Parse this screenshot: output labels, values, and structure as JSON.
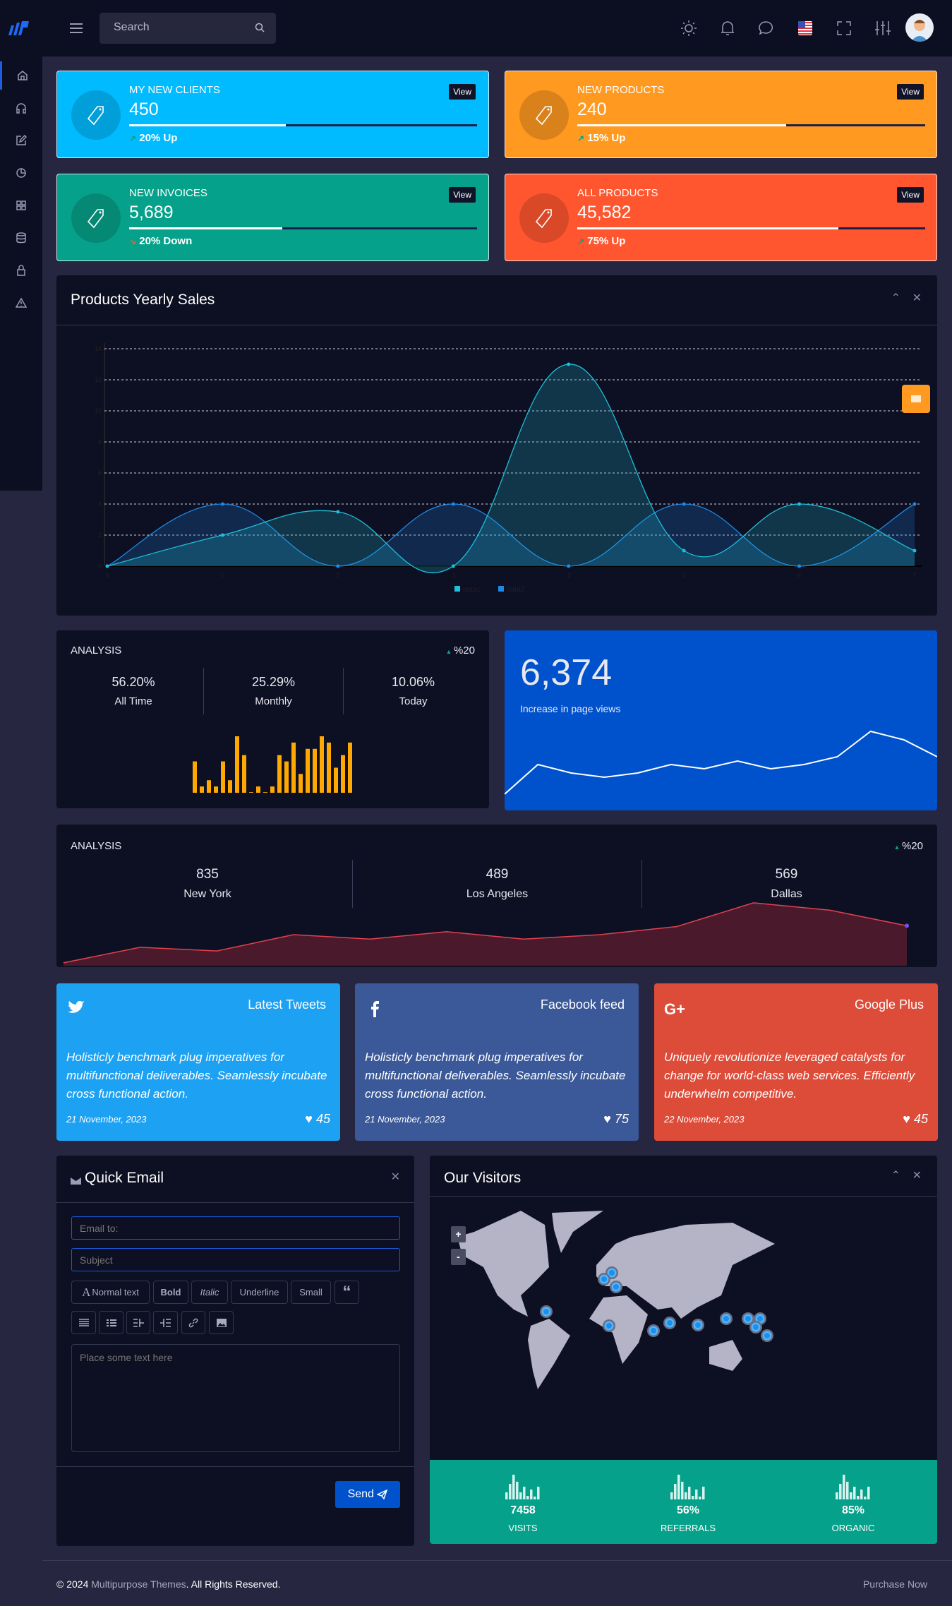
{
  "header": {
    "search_placeholder": "Search",
    "icons": [
      "menu-icon",
      "search-icon",
      "sun-icon",
      "bell-icon",
      "chat-icon",
      "us-flag-icon",
      "fullscreen-icon",
      "sliders-icon",
      "avatar"
    ]
  },
  "sidebar": {
    "items": [
      "home",
      "headphones",
      "edit",
      "pie-chart",
      "grid",
      "database",
      "lock",
      "alert"
    ]
  },
  "stats": [
    {
      "title": "MY NEW CLIENTS",
      "value": "450",
      "status": "20% Up",
      "trend": "up",
      "progress": 45,
      "color": "#00bbff",
      "view": "View"
    },
    {
      "title": "NEW PRODUCTS",
      "value": "240",
      "status": "15% Up",
      "trend": "up",
      "progress": 60,
      "color": "#ff9920",
      "view": "View"
    },
    {
      "title": "NEW INVOICES",
      "value": "5,689",
      "status": "20% Down",
      "trend": "down",
      "progress": 44,
      "color": "#06a18a",
      "view": "View"
    },
    {
      "title": "ALL PRODUCTS",
      "value": "45,582",
      "status": "75% Up",
      "trend": "up",
      "progress": 75,
      "color": "#ff562f",
      "view": "View"
    }
  ],
  "yearly": {
    "title": "Products Yearly Sales"
  },
  "chart_data": [
    {
      "type": "area",
      "x": [
        0,
        1,
        2,
        3,
        4,
        5,
        6,
        7
      ],
      "ylim": [
        0,
        14
      ],
      "yticks": [
        0,
        2,
        4,
        6,
        8,
        10,
        12,
        14
      ],
      "grid": true,
      "legend": "bottom",
      "series": [
        {
          "name": "data1",
          "color": "#1ebfd8",
          "values": [
            0,
            2,
            3.5,
            0,
            13,
            1,
            4,
            1
          ]
        },
        {
          "name": "data2",
          "color": "#1e88e5",
          "values": [
            0,
            4,
            0,
            4,
            0,
            4,
            0,
            4
          ]
        }
      ]
    },
    {
      "type": "bar",
      "color": "#ffa800",
      "values": [
        5,
        1,
        2,
        1,
        5,
        2,
        9,
        6,
        0.1,
        1,
        0.1,
        1,
        6,
        5,
        8,
        3,
        7,
        7,
        9,
        8,
        4,
        6,
        8
      ]
    },
    {
      "type": "line",
      "color": "#ffffff",
      "values": [
        3,
        45,
        33,
        27,
        33,
        45,
        39,
        50,
        39,
        45,
        56,
        92,
        80,
        56
      ]
    },
    {
      "type": "area",
      "color": "#e0424f",
      "values": [
        2,
        23,
        18,
        40,
        34,
        44,
        34,
        40,
        51,
        83,
        73,
        52
      ]
    }
  ],
  "analysis1": {
    "title": "ANALYSIS",
    "change": "%20",
    "stats": [
      {
        "value": "56.20%",
        "label": "All Time"
      },
      {
        "value": "25.29%",
        "label": "Monthly"
      },
      {
        "value": "10.06%",
        "label": "Today"
      }
    ]
  },
  "pageviews": {
    "value": "6,374",
    "label": "Increase in page views"
  },
  "analysis2": {
    "title": "ANALYSIS",
    "change": "%20",
    "stats": [
      {
        "value": "835",
        "label": "New York"
      },
      {
        "value": "489",
        "label": "Los Angeles"
      },
      {
        "value": "569",
        "label": "Dallas"
      }
    ]
  },
  "social": [
    {
      "label": "Latest Tweets",
      "icon": "twitter-icon",
      "text": "Holisticly benchmark plug imperatives for multifunctional deliverables. Seamlessly incubate cross functional action.",
      "date": "21 November, 2023",
      "likes": "45",
      "color": "#1da1f2"
    },
    {
      "label": "Facebook feed",
      "icon": "facebook-icon",
      "text": "Holisticly benchmark plug imperatives for multifunctional deliverables. Seamlessly incubate cross functional action.",
      "date": "21 November, 2023",
      "likes": "75",
      "color": "#3b5998"
    },
    {
      "label": "Google Plus",
      "icon": "google-plus-icon",
      "text": "Uniquely revolutionize leveraged catalysts for change for world-class web services. Efficiently underwhelm competitive.",
      "date": "22 November, 2023",
      "likes": "45",
      "color": "#dd4b39"
    }
  ],
  "email": {
    "title": "Quick Email",
    "to_placeholder": "Email to:",
    "subject_placeholder": "Subject",
    "body_placeholder": "Place some text here",
    "toolbar": [
      "Normal text",
      "Bold",
      "Italic",
      "Underline",
      "Small"
    ],
    "send": "Send"
  },
  "visitors": {
    "title": "Our Visitors",
    "zoom_in": "+",
    "zoom_out": "-",
    "stats": [
      {
        "value": "7458",
        "label": "VISITS"
      },
      {
        "value": "56%",
        "label": "REFERRALS"
      },
      {
        "value": "85%",
        "label": "ORGANIC"
      }
    ]
  },
  "footer": {
    "copyright": "© 2024",
    "brand": "Multipurpose Themes",
    "rights": ". All Rights Reserved.",
    "purchase": "Purchase Now"
  }
}
